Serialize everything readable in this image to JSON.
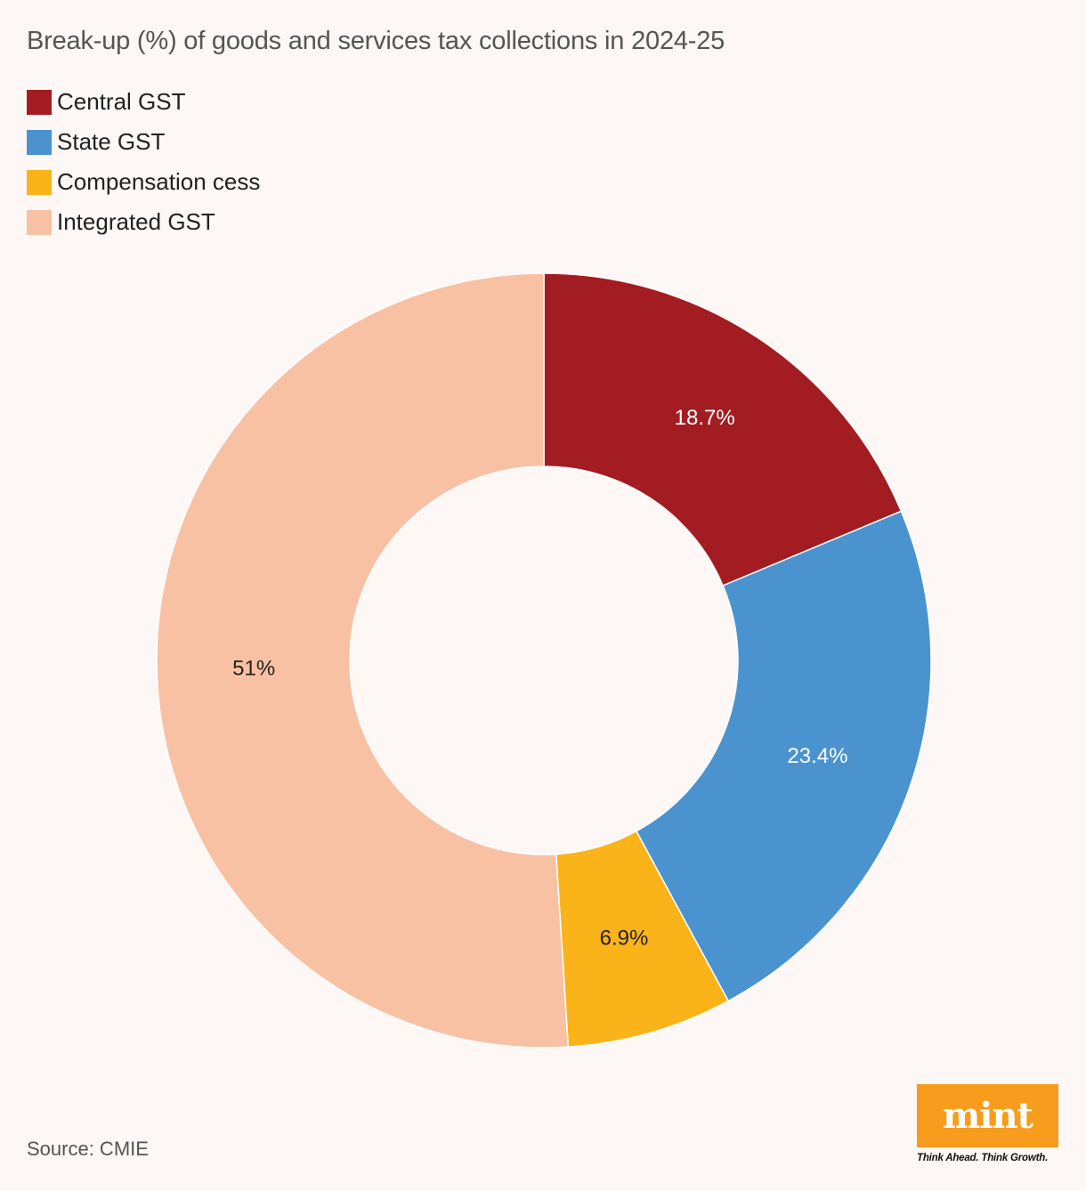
{
  "chart_data": {
    "type": "pie",
    "title": "Break-up (%) of goods and services tax collections in 2024-25",
    "categories": [
      "Central GST",
      "State GST",
      "Compensation cess",
      "Integrated GST"
    ],
    "values": [
      18.7,
      23.4,
      6.9,
      51
    ],
    "value_labels": [
      "18.7%",
      "23.4%",
      "6.9%",
      "51%"
    ],
    "colors": [
      "#a31c22",
      "#4a93cf",
      "#fbb31a",
      "#f9c1a3"
    ],
    "label_colors": [
      "#ffffff",
      "#ffffff",
      "#222222",
      "#222222"
    ],
    "legend_position": "top-left",
    "donut": true,
    "start_angle_deg": 0,
    "direction": "clockwise"
  },
  "source": "Source: CMIE",
  "logo": {
    "word": "mint",
    "tagline": "Think Ahead. Think Growth.",
    "color": "#f79c1c"
  },
  "background": "#fdf7f6"
}
